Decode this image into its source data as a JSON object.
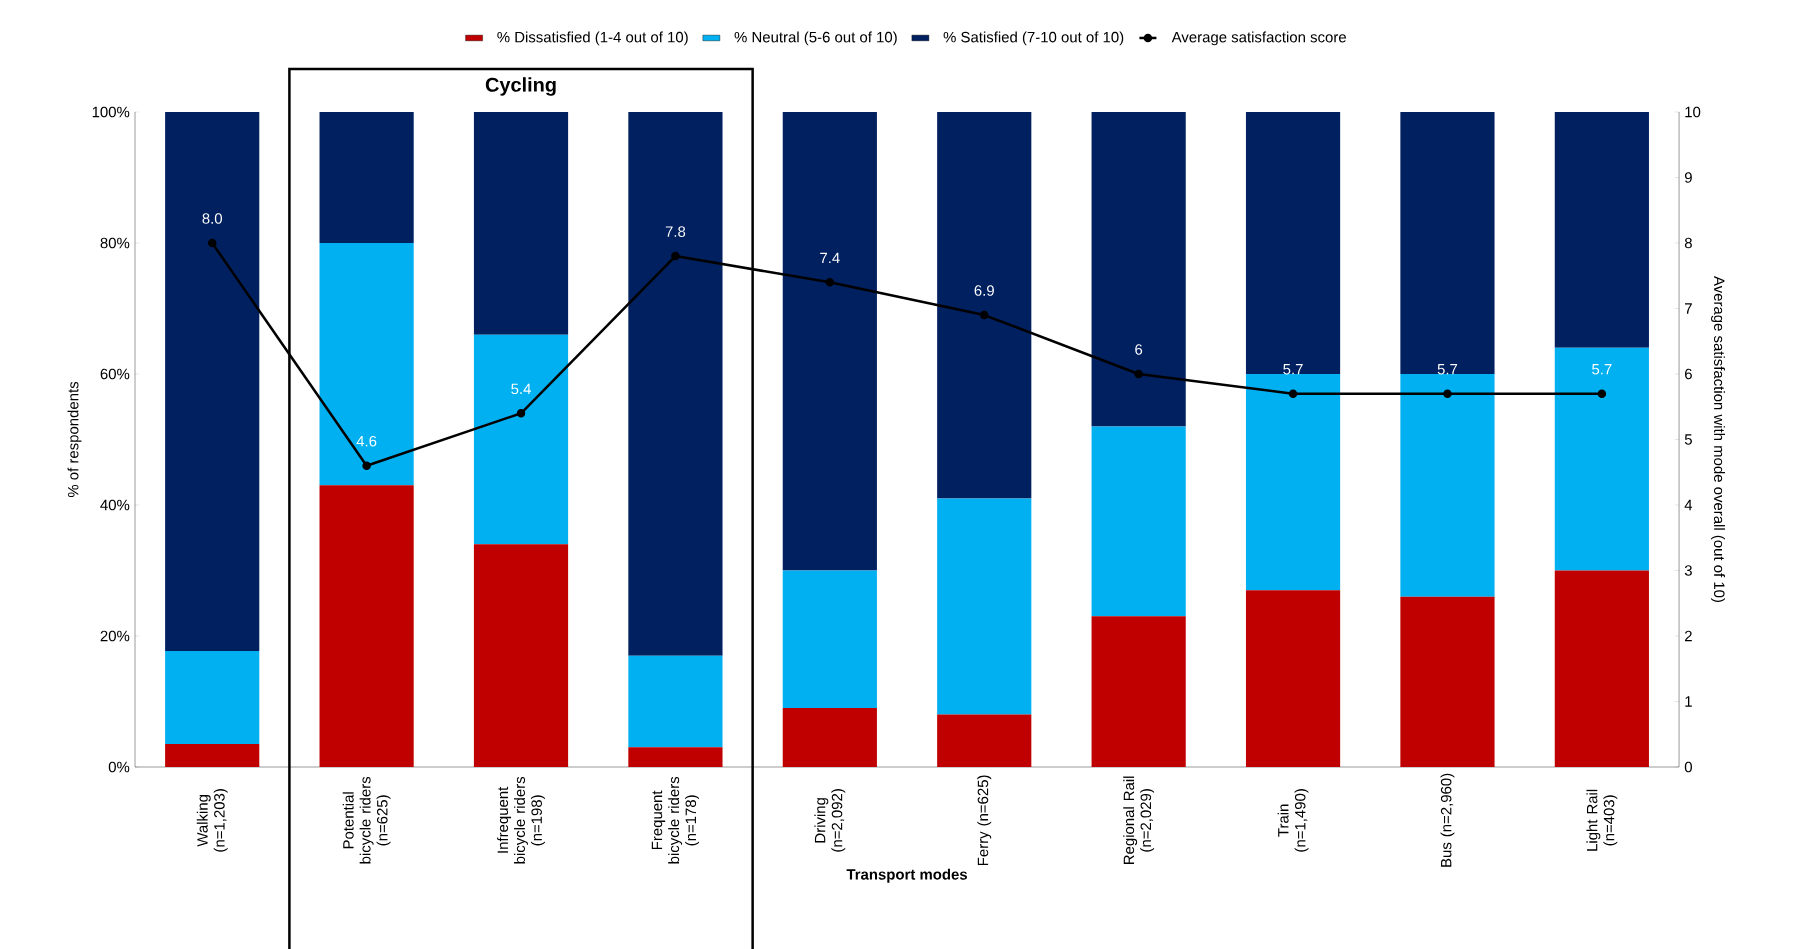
{
  "chart_data": {
    "type": "bar",
    "stacked": true,
    "xlabel": "Transport modes",
    "ylabel": "% of respondents",
    "y2label": "Average satisfaction with mode overall (out of 10)",
    "categories": [
      "Walking (n=1,203)",
      "Potential bicycle riders (n=625)",
      "Infrequent bicycle riders (n=198)",
      "Frequent bicycle riders (n=178)",
      "Driving (n=2,092)",
      "Ferry (n=625)",
      "Regional Rail (n=2,029)",
      "Train (n=1,490)",
      "Bus (n=2,960)",
      "Light Rail (n=403)"
    ],
    "series": [
      {
        "name": "% Dissatisfied (1-4 out of 10)",
        "color": "#c00000",
        "values": [
          3.5,
          43,
          34,
          3,
          9,
          8,
          23,
          27,
          26,
          30
        ]
      },
      {
        "name": "% Neutral (5-6 out of 10)",
        "color": "#00b0f0",
        "values": [
          14.2,
          37,
          32,
          14,
          21,
          33,
          29,
          33,
          34,
          34
        ]
      },
      {
        "name": "% Satisfied (7-10 out of 10)",
        "color": "#002060",
        "values": [
          82.3,
          20,
          34,
          83,
          70,
          59,
          48,
          40,
          40,
          36
        ]
      },
      {
        "name": "Average satisfaction score",
        "type": "line",
        "axis": "y2",
        "color": "#000000",
        "marker": "circle",
        "values": [
          8.0,
          4.6,
          5.4,
          7.8,
          7.4,
          6.9,
          6,
          5.7,
          5.7,
          5.7
        ],
        "value_labels": [
          "8.0",
          "4.6",
          "5.4",
          "7.8",
          "7.4",
          "6.9",
          "6",
          "5.7",
          "5.7",
          "5.7"
        ]
      }
    ],
    "ylim": [
      0,
      100
    ],
    "yticks": [
      {
        "value": 0,
        "label": "0%"
      },
      {
        "value": 20,
        "label": "20%"
      },
      {
        "value": 40,
        "label": "40%"
      },
      {
        "value": 60,
        "label": "60%"
      },
      {
        "value": 80,
        "label": "80%"
      },
      {
        "value": 100,
        "label": "100%"
      }
    ],
    "y2lim": [
      0,
      10
    ],
    "y2ticks": [
      0,
      1,
      2,
      3,
      4,
      5,
      6,
      7,
      8,
      9,
      10
    ],
    "legend": "top",
    "grid": false,
    "annotations": [
      "Cycling"
    ]
  }
}
